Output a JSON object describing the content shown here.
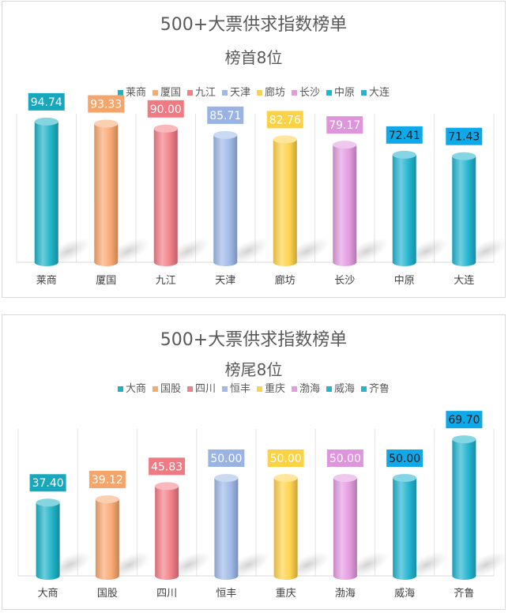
{
  "chart_data": [
    {
      "type": "bar",
      "title": "500+大票供求指数榜单",
      "subtitle": "榜首8位",
      "categories": [
        "莱商",
        "厦国",
        "九江",
        "天津",
        "廊坊",
        "长沙",
        "中原",
        "大连"
      ],
      "values": [
        94.74,
        93.33,
        90.0,
        85.71,
        82.76,
        79.17,
        72.41,
        71.43
      ],
      "value_labels": [
        "94.74",
        "93.33",
        "90.00",
        "85.71",
        "82.76",
        "79.17",
        "72.41",
        "71.43"
      ],
      "colors": [
        "#1fb2c7",
        "#f9a870",
        "#f27e86",
        "#9fb9e8",
        "#fed24a",
        "#e39be0",
        "#22b4d0",
        "#22b4d0"
      ],
      "label_colors": [
        "#18a8bd",
        "#f6a56a",
        "#ee7b83",
        "#98b3e4",
        "#fcd245",
        "#df95dc",
        "#0fa8e8",
        "#0fa8e8"
      ],
      "label_text_colors": [
        "#ffffff",
        "#ffffff",
        "#ffffff",
        "#ffffff",
        "#ffffff",
        "#ffffff",
        "#1a1a1a",
        "#1a1a1a"
      ],
      "ylim": [
        0,
        100
      ],
      "grid": "vertical",
      "legend": "top"
    },
    {
      "type": "bar",
      "title": "500+大票供求指数榜单",
      "subtitle": "榜尾8位",
      "categories": [
        "大商",
        "国股",
        "四川",
        "恒丰",
        "重庆",
        "渤海",
        "威海",
        "齐鲁"
      ],
      "values": [
        37.4,
        39.12,
        45.83,
        50.0,
        50.0,
        50.0,
        50.0,
        69.7
      ],
      "value_labels": [
        "37.40",
        "39.12",
        "45.83",
        "50.00",
        "50.00",
        "50.00",
        "50.00",
        "69.70"
      ],
      "colors": [
        "#1fb2c7",
        "#f9a870",
        "#f27e86",
        "#9fb9e8",
        "#fed24a",
        "#e39be0",
        "#22b4d0",
        "#22b4d0"
      ],
      "label_colors": [
        "#18a8bd",
        "#f6a56a",
        "#ee7b83",
        "#98b3e4",
        "#fcd245",
        "#df95dc",
        "#0fa8e8",
        "#0fa8e8"
      ],
      "label_text_colors": [
        "#ffffff",
        "#ffffff",
        "#ffffff",
        "#ffffff",
        "#ffffff",
        "#ffffff",
        "#1a1a1a",
        "#1a1a1a"
      ],
      "ylim": [
        0,
        75
      ],
      "grid": "vertical",
      "legend": "top"
    }
  ]
}
